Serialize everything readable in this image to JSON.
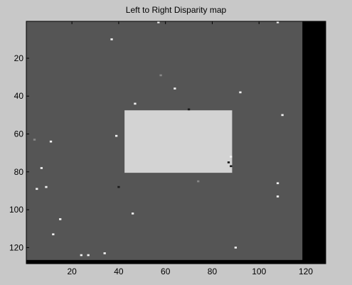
{
  "window": {
    "title": "Left to Right Disparity map"
  },
  "chart_data": {
    "type": "heatmap",
    "title": "Left to Right Disparity map",
    "xlim": [
      0.5,
      128.5
    ],
    "ylim": [
      0.5,
      128.5
    ],
    "xticks": [
      20,
      40,
      60,
      80,
      100,
      120
    ],
    "yticks": [
      20,
      40,
      60,
      80,
      100,
      120
    ],
    "colors": {
      "background_region": "#555555",
      "object_region": "#d3d3d3",
      "invalid_region": "#000000",
      "outlier_light": "#f2f2f2",
      "outlier_dark": "#1a1a1a",
      "outlier_mid": "#888888"
    },
    "regions": [
      {
        "kind": "background",
        "x": [
          1,
          118
        ],
        "y": [
          1,
          126
        ]
      },
      {
        "kind": "object",
        "x": [
          43,
          88
        ],
        "y": [
          48,
          80
        ]
      },
      {
        "kind": "invalid",
        "x": [
          119,
          128
        ],
        "y": [
          1,
          128
        ]
      },
      {
        "kind": "invalid",
        "x": [
          1,
          128
        ],
        "y": [
          127,
          128
        ]
      }
    ],
    "outliers": [
      {
        "x": 57,
        "y": 1,
        "shade": "light"
      },
      {
        "x": 108,
        "y": 1,
        "shade": "light"
      },
      {
        "x": 37,
        "y": 10,
        "shade": "light"
      },
      {
        "x": 58,
        "y": 29,
        "shade": "mid"
      },
      {
        "x": 64,
        "y": 36,
        "shade": "light"
      },
      {
        "x": 92,
        "y": 38,
        "shade": "light"
      },
      {
        "x": 47,
        "y": 44,
        "shade": "light"
      },
      {
        "x": 110,
        "y": 50,
        "shade": "light"
      },
      {
        "x": 70,
        "y": 47,
        "shade": "dark"
      },
      {
        "x": 39,
        "y": 61,
        "shade": "light"
      },
      {
        "x": 4,
        "y": 63,
        "shade": "mid"
      },
      {
        "x": 11,
        "y": 64,
        "shade": "light"
      },
      {
        "x": 88,
        "y": 72,
        "shade": "light"
      },
      {
        "x": 87,
        "y": 75,
        "shade": "dark"
      },
      {
        "x": 88,
        "y": 77,
        "shade": "dark"
      },
      {
        "x": 7,
        "y": 78,
        "shade": "light"
      },
      {
        "x": 74,
        "y": 85,
        "shade": "mid"
      },
      {
        "x": 108,
        "y": 86,
        "shade": "light"
      },
      {
        "x": 40,
        "y": 88,
        "shade": "dark"
      },
      {
        "x": 5,
        "y": 89,
        "shade": "light"
      },
      {
        "x": 9,
        "y": 88,
        "shade": "light"
      },
      {
        "x": 108,
        "y": 93,
        "shade": "light"
      },
      {
        "x": 46,
        "y": 102,
        "shade": "light"
      },
      {
        "x": 15,
        "y": 105,
        "shade": "light"
      },
      {
        "x": 12,
        "y": 113,
        "shade": "light"
      },
      {
        "x": 90,
        "y": 120,
        "shade": "light"
      },
      {
        "x": 24,
        "y": 124,
        "shade": "light"
      },
      {
        "x": 27,
        "y": 124,
        "shade": "light"
      },
      {
        "x": 34,
        "y": 123,
        "shade": "light"
      }
    ]
  }
}
